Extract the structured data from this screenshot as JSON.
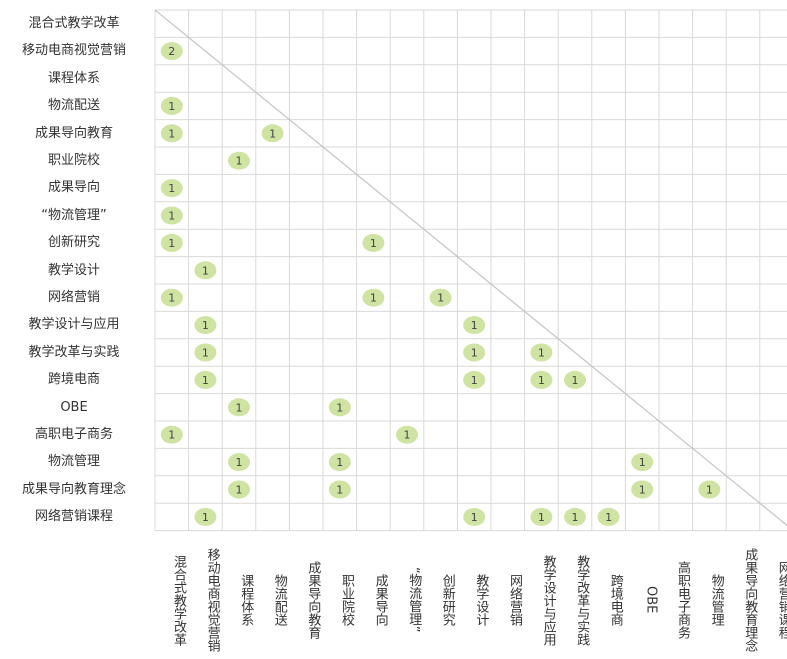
{
  "chart_data": {
    "type": "heatmap",
    "title": "",
    "row_labels": [
      "混合式教学改革",
      "移动电商视觉营销",
      "课程体系",
      "物流配送",
      "成果导向教育",
      "职业院校",
      "成果导向",
      "“物流管理”",
      "创新研究",
      "教学设计",
      "网络营销",
      "教学设计与应用",
      "教学改革与实践",
      "跨境电商",
      "OBE",
      "高职电子商务",
      "物流管理",
      "成果导向教育理念",
      "网络营销课程"
    ],
    "col_labels": [
      "混合式教学改革",
      "移动电商视觉营销",
      "课程体系",
      "物流配送",
      "成果导向教育",
      "职业院校",
      "成果导向",
      "“物流管理”",
      "创新研究",
      "教学设计",
      "网络营销",
      "教学设计与应用",
      "教学改革与实践",
      "跨境电商",
      "OBE",
      "高职电子商务",
      "物流管理",
      "成果导向教育理念",
      "网络营销课程"
    ],
    "cells": [
      {
        "row": 1,
        "col": 0,
        "value": 2
      },
      {
        "row": 3,
        "col": 0,
        "value": 1
      },
      {
        "row": 4,
        "col": 0,
        "value": 1
      },
      {
        "row": 4,
        "col": 3,
        "value": 1
      },
      {
        "row": 5,
        "col": 2,
        "value": 1
      },
      {
        "row": 6,
        "col": 0,
        "value": 1
      },
      {
        "row": 7,
        "col": 0,
        "value": 1
      },
      {
        "row": 8,
        "col": 0,
        "value": 1
      },
      {
        "row": 8,
        "col": 6,
        "value": 1
      },
      {
        "row": 9,
        "col": 1,
        "value": 1
      },
      {
        "row": 10,
        "col": 0,
        "value": 1
      },
      {
        "row": 10,
        "col": 6,
        "value": 1
      },
      {
        "row": 10,
        "col": 8,
        "value": 1
      },
      {
        "row": 11,
        "col": 1,
        "value": 1
      },
      {
        "row": 11,
        "col": 9,
        "value": 1
      },
      {
        "row": 12,
        "col": 1,
        "value": 1
      },
      {
        "row": 12,
        "col": 9,
        "value": 1
      },
      {
        "row": 12,
        "col": 11,
        "value": 1
      },
      {
        "row": 13,
        "col": 1,
        "value": 1
      },
      {
        "row": 13,
        "col": 9,
        "value": 1
      },
      {
        "row": 13,
        "col": 11,
        "value": 1
      },
      {
        "row": 13,
        "col": 12,
        "value": 1
      },
      {
        "row": 14,
        "col": 2,
        "value": 1
      },
      {
        "row": 14,
        "col": 5,
        "value": 1
      },
      {
        "row": 15,
        "col": 0,
        "value": 1
      },
      {
        "row": 15,
        "col": 7,
        "value": 1
      },
      {
        "row": 16,
        "col": 2,
        "value": 1
      },
      {
        "row": 16,
        "col": 5,
        "value": 1
      },
      {
        "row": 16,
        "col": 14,
        "value": 1
      },
      {
        "row": 17,
        "col": 2,
        "value": 1
      },
      {
        "row": 17,
        "col": 5,
        "value": 1
      },
      {
        "row": 17,
        "col": 14,
        "value": 1
      },
      {
        "row": 17,
        "col": 16,
        "value": 1
      },
      {
        "row": 18,
        "col": 1,
        "value": 1
      },
      {
        "row": 18,
        "col": 9,
        "value": 1
      },
      {
        "row": 18,
        "col": 11,
        "value": 1
      },
      {
        "row": 18,
        "col": 12,
        "value": 1
      },
      {
        "row": 18,
        "col": 13,
        "value": 1
      }
    ],
    "grid": true,
    "diagonal_line": true,
    "colors": {
      "grid": "#d9d9d9",
      "diagonal": "#c8c8c8",
      "bubble": "#cfe3a3",
      "bubble_text": "#444444",
      "label_text": "#333333"
    }
  }
}
